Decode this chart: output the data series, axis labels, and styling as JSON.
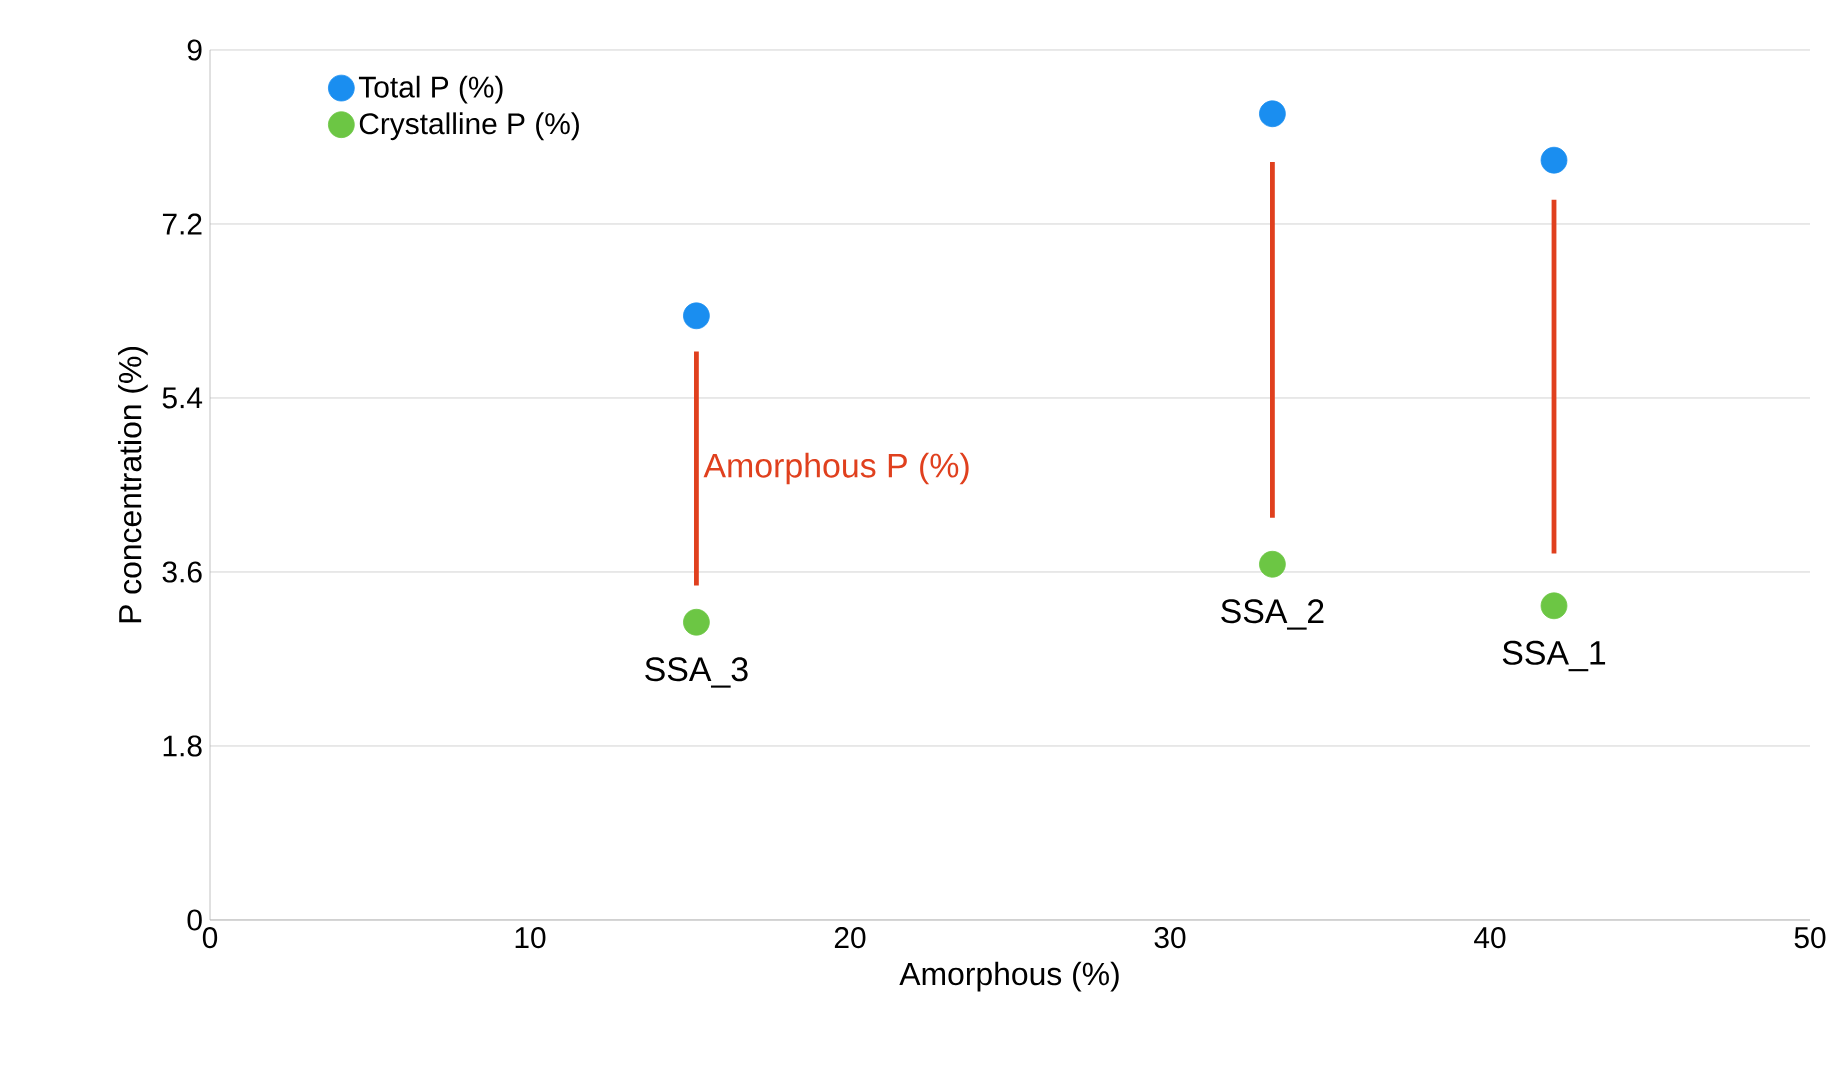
{
  "chart_data": {
    "type": "scatter",
    "xlabel": "Amorphous (%)",
    "ylabel": "P concentration (%)",
    "series": [
      {
        "name": "Total P (%)",
        "color": "#1a8ef0",
        "x": [
          15.2,
          33.2,
          42
        ],
        "values": [
          6.25,
          8.34,
          7.86
        ]
      },
      {
        "name": "Crystalline P (%)",
        "color": "#6cc644",
        "x": [
          15.2,
          33.2,
          42
        ],
        "values": [
          3.08,
          3.68,
          3.25
        ]
      },
      {
        "name": "Amorphous P (%)",
        "type": "bar",
        "color": "#e0401e",
        "x": [
          15.2,
          33.2,
          42
        ],
        "base": [
          3.46,
          4.16,
          3.79
        ],
        "values": [
          2.42,
          3.68,
          3.66
        ]
      }
    ],
    "annotations": [
      {
        "text": "SSA_3",
        "x": 15.2,
        "y": 3.08
      },
      {
        "text": "SSA_2",
        "x": 33.2,
        "y": 3.68
      },
      {
        "text": "SSA_1",
        "x": 42,
        "y": 3.25
      }
    ],
    "xlim": [
      0,
      50
    ],
    "ylim": [
      0,
      9
    ],
    "xticks": [
      0,
      10,
      20,
      30,
      40,
      50
    ],
    "yticks": [
      0,
      1.8,
      3.6,
      5.4,
      7.2,
      9
    ],
    "grid": "y",
    "legend": "top left"
  }
}
